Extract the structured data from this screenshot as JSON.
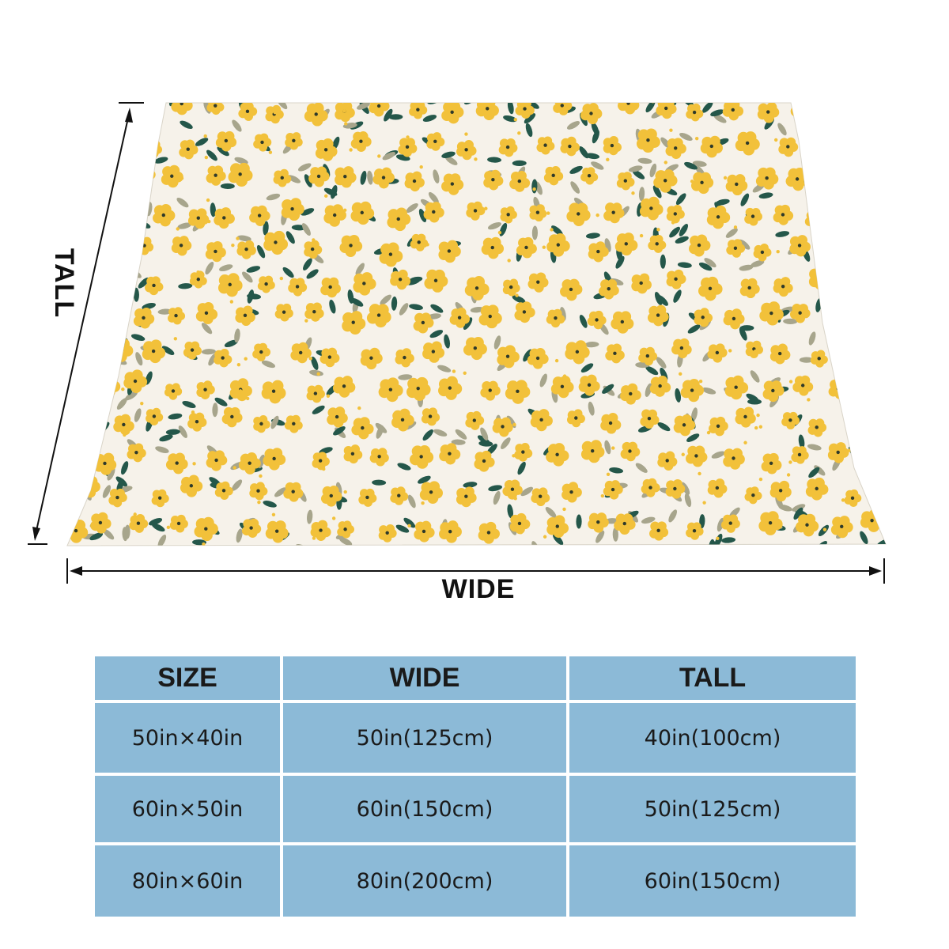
{
  "labels": {
    "wide": "WIDE",
    "tall": "TALL"
  },
  "colors": {
    "blanket_bg": "#f6f2ea",
    "flower": "#f2c13a",
    "flower_center": "#2f3a2a",
    "leaf_dark": "#24574a",
    "leaf_gray": "#a7a58c",
    "table_cell": "#8cbad7"
  },
  "table": {
    "headers": [
      "SIZE",
      "WIDE",
      "TALL"
    ],
    "rows": [
      [
        "50in×40in",
        "50in(125cm)",
        "40in(100cm)"
      ],
      [
        "60in×50in",
        "60in(150cm)",
        "50in(125cm)"
      ],
      [
        "80in×60in",
        "80in(200cm)",
        "60in(150cm)"
      ]
    ]
  }
}
